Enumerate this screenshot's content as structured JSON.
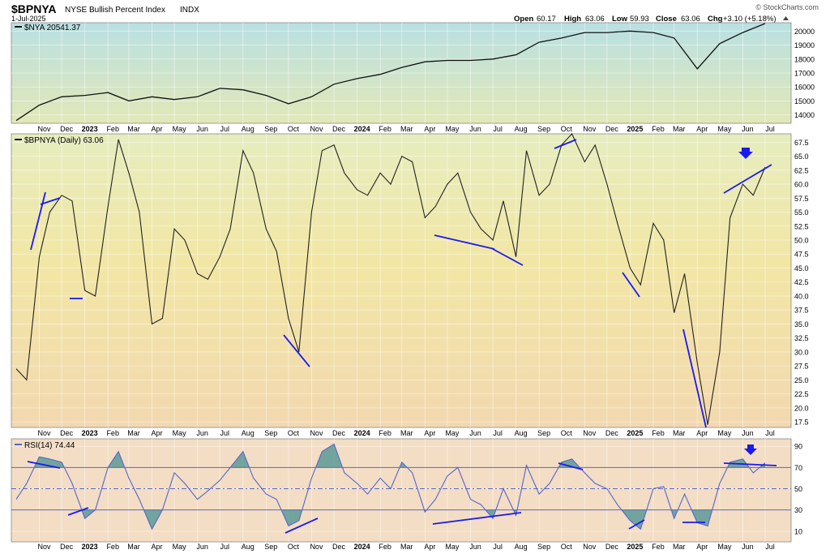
{
  "header": {
    "symbol": "$BPNYA",
    "name": "NYSE Bullish Percent Index",
    "exchange": "INDX",
    "date": "1-Jul-2025",
    "open_label": "Open",
    "open": "60.17",
    "high_label": "High",
    "high": "63.06",
    "low_label": "Low",
    "low": "59.93",
    "close_label": "Close",
    "close": "63.06",
    "chg_label": "Chg",
    "chg": "+3.10 (+5.18%)",
    "watermark": "© StockCharts.com"
  },
  "colors": {
    "price_line": "#111111",
    "trendline": "#1a1aee",
    "arrow": "#1a1aee",
    "rsi_line": "#5566cc",
    "rsi_fill": "#5a9a96",
    "panel1_top": "#b9e0e2",
    "panel1_bottom": "#e2e8b8",
    "panel2_top": "#e6edbe",
    "panel2_mid": "#f2e6a4",
    "panel2_bottom": "#f2d8b0",
    "panel3_bg": "#f3ddc4"
  },
  "x_axis": {
    "labels": [
      "Nov",
      "Dec",
      "2023",
      "Feb",
      "Mar",
      "Apr",
      "May",
      "Jun",
      "Jul",
      "Aug",
      "Sep",
      "Oct",
      "Nov",
      "Dec",
      "2024",
      "Feb",
      "Mar",
      "Apr",
      "May",
      "Jun",
      "Jul",
      "Aug",
      "Sep",
      "Oct",
      "Nov",
      "Dec",
      "2025",
      "Feb",
      "Mar",
      "Apr",
      "May",
      "Jun",
      "Jul"
    ],
    "bold": [
      false,
      false,
      true,
      false,
      false,
      false,
      false,
      false,
      false,
      false,
      false,
      false,
      false,
      false,
      true,
      false,
      false,
      false,
      false,
      false,
      false,
      false,
      false,
      false,
      false,
      false,
      true,
      false,
      false,
      false,
      false,
      false,
      false
    ]
  },
  "chart_data": [
    {
      "type": "line",
      "panel": "price",
      "legend": "$NYA 20541.37",
      "x_range": [
        "2022-10-01",
        "2025-07-01"
      ],
      "ylim": [
        13400,
        20600
      ],
      "yticks": [
        14000,
        15000,
        16000,
        17000,
        18000,
        19000,
        20000
      ],
      "grid": true,
      "series": [
        {
          "name": "$NYA",
          "x": [
            "2022-10-01",
            "2022-11-01",
            "2022-12-01",
            "2023-01-01",
            "2023-02-01",
            "2023-03-01",
            "2023-04-01",
            "2023-05-01",
            "2023-06-01",
            "2023-07-01",
            "2023-08-01",
            "2023-09-01",
            "2023-10-01",
            "2023-11-01",
            "2023-12-01",
            "2024-01-01",
            "2024-02-01",
            "2024-03-01",
            "2024-04-01",
            "2024-05-01",
            "2024-06-01",
            "2024-07-01",
            "2024-08-01",
            "2024-09-01",
            "2024-10-01",
            "2024-11-01",
            "2024-12-01",
            "2025-01-01",
            "2025-02-01",
            "2025-03-01",
            "2025-04-01",
            "2025-05-01",
            "2025-06-01",
            "2025-07-01"
          ],
          "values": [
            13600,
            14700,
            15300,
            15400,
            15600,
            15000,
            15300,
            15100,
            15300,
            15900,
            15800,
            15400,
            14800,
            15300,
            16200,
            16600,
            16900,
            17400,
            17800,
            17900,
            17900,
            18000,
            18300,
            19200,
            19500,
            19900,
            19900,
            20000,
            19900,
            19500,
            17300,
            19100,
            19900,
            20541
          ]
        }
      ]
    },
    {
      "type": "line",
      "panel": "bpnya",
      "legend": "$BPNYA (Daily) 63.06",
      "x_range": [
        "2022-10-01",
        "2025-07-01"
      ],
      "ylim": [
        16.5,
        69
      ],
      "yticks": [
        17.5,
        20.0,
        22.5,
        25.0,
        27.5,
        30.0,
        32.5,
        35.0,
        37.5,
        40.0,
        42.5,
        45.0,
        47.5,
        50.0,
        52.5,
        55.0,
        57.5,
        60.0,
        62.5,
        65.0,
        67.5
      ],
      "grid": true,
      "series": [
        {
          "name": "$BPNYA",
          "x": [
            "2022-10-01",
            "2022-10-15",
            "2022-11-01",
            "2022-11-15",
            "2022-12-01",
            "2022-12-15",
            "2023-01-01",
            "2023-01-15",
            "2023-02-01",
            "2023-02-15",
            "2023-03-01",
            "2023-03-15",
            "2023-04-01",
            "2023-04-15",
            "2023-05-01",
            "2023-05-15",
            "2023-06-01",
            "2023-06-15",
            "2023-07-01",
            "2023-07-15",
            "2023-08-01",
            "2023-08-15",
            "2023-09-01",
            "2023-09-15",
            "2023-10-01",
            "2023-10-15",
            "2023-11-01",
            "2023-11-15",
            "2023-12-01",
            "2023-12-15",
            "2024-01-01",
            "2024-01-15",
            "2024-02-01",
            "2024-02-15",
            "2024-03-01",
            "2024-03-15",
            "2024-04-01",
            "2024-04-15",
            "2024-05-01",
            "2024-05-15",
            "2024-06-01",
            "2024-06-15",
            "2024-07-01",
            "2024-07-15",
            "2024-08-01",
            "2024-08-15",
            "2024-09-01",
            "2024-09-15",
            "2024-10-01",
            "2024-10-15",
            "2024-11-01",
            "2024-11-15",
            "2024-12-01",
            "2024-12-15",
            "2025-01-01",
            "2025-01-15",
            "2025-02-01",
            "2025-02-15",
            "2025-03-01",
            "2025-03-15",
            "2025-04-01",
            "2025-04-15",
            "2025-05-01",
            "2025-05-15",
            "2025-06-01",
            "2025-06-15",
            "2025-07-01"
          ],
          "values": [
            27,
            25,
            47,
            55,
            58,
            57,
            41,
            40,
            56,
            68,
            62,
            55,
            35,
            36,
            52,
            50,
            44,
            43,
            47,
            52,
            66,
            62,
            52,
            48,
            36,
            30,
            55,
            66,
            67,
            62,
            59,
            58,
            62,
            60,
            65,
            64,
            54,
            56,
            60,
            62,
            55,
            52,
            50,
            57,
            47,
            66,
            58,
            60,
            67,
            69,
            64,
            67,
            60,
            53,
            45,
            42,
            53,
            50,
            37,
            44,
            28,
            17,
            30,
            54,
            60,
            58,
            63.06
          ]
        }
      ]
    },
    {
      "type": "line",
      "panel": "rsi",
      "legend": "RSI(14) 74.44",
      "x_range": [
        "2022-10-01",
        "2025-07-01"
      ],
      "ylim": [
        0,
        97
      ],
      "yticks": [
        10,
        30,
        50,
        70,
        90
      ],
      "levels": [
        30,
        50,
        70
      ],
      "grid": true,
      "series": [
        {
          "name": "RSI(14)",
          "x": [
            "2022-10-01",
            "2022-10-15",
            "2022-11-01",
            "2022-11-15",
            "2022-12-01",
            "2022-12-15",
            "2023-01-01",
            "2023-01-15",
            "2023-02-01",
            "2023-02-15",
            "2023-03-01",
            "2023-03-15",
            "2023-04-01",
            "2023-04-15",
            "2023-05-01",
            "2023-05-15",
            "2023-06-01",
            "2023-06-15",
            "2023-07-01",
            "2023-07-15",
            "2023-08-01",
            "2023-08-15",
            "2023-09-01",
            "2023-09-15",
            "2023-10-01",
            "2023-10-15",
            "2023-11-01",
            "2023-11-15",
            "2023-12-01",
            "2023-12-15",
            "2024-01-01",
            "2024-01-15",
            "2024-02-01",
            "2024-02-15",
            "2024-03-01",
            "2024-03-15",
            "2024-04-01",
            "2024-04-15",
            "2024-05-01",
            "2024-05-15",
            "2024-06-01",
            "2024-06-15",
            "2024-07-01",
            "2024-07-15",
            "2024-08-01",
            "2024-08-15",
            "2024-09-01",
            "2024-09-15",
            "2024-10-01",
            "2024-10-15",
            "2024-11-01",
            "2024-11-15",
            "2024-12-01",
            "2024-12-15",
            "2025-01-01",
            "2025-01-15",
            "2025-02-01",
            "2025-02-15",
            "2025-03-01",
            "2025-03-15",
            "2025-04-01",
            "2025-04-15",
            "2025-05-01",
            "2025-05-15",
            "2025-06-01",
            "2025-06-15",
            "2025-07-01"
          ],
          "values": [
            40,
            55,
            80,
            78,
            75,
            55,
            22,
            30,
            70,
            85,
            60,
            40,
            12,
            30,
            65,
            55,
            40,
            48,
            58,
            70,
            85,
            60,
            45,
            40,
            15,
            20,
            60,
            85,
            92,
            65,
            55,
            45,
            60,
            50,
            75,
            65,
            28,
            40,
            62,
            70,
            40,
            35,
            22,
            50,
            25,
            72,
            45,
            55,
            75,
            78,
            65,
            55,
            50,
            35,
            20,
            12,
            50,
            52,
            22,
            45,
            18,
            15,
            55,
            75,
            78,
            65,
            74.44
          ]
        }
      ]
    }
  ]
}
